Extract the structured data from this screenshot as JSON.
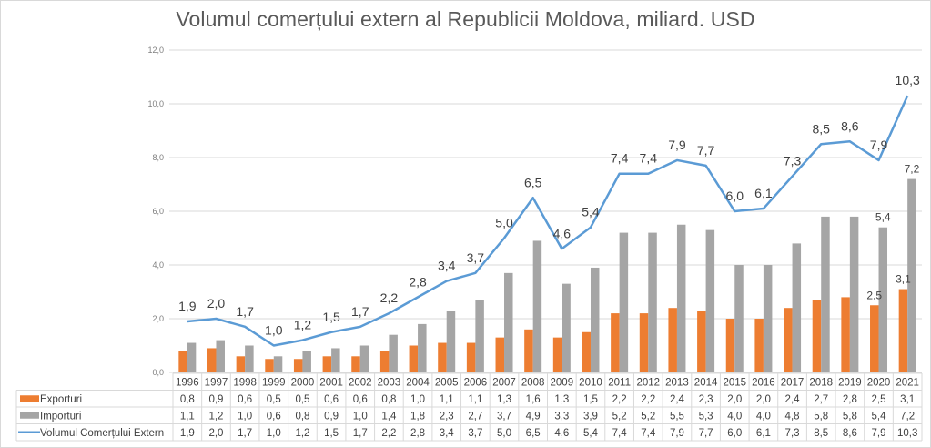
{
  "chart_data": {
    "type": "bar",
    "title": "Volumul comerțului extern al Republicii Moldova, miliard. USD",
    "xlabel": "",
    "ylabel": "",
    "ylim": [
      0,
      12
    ],
    "yticks": [
      "0,0",
      "2,0",
      "4,0",
      "6,0",
      "8,0",
      "10,0",
      "12,0"
    ],
    "ytick_values": [
      0,
      2,
      4,
      6,
      8,
      10,
      12
    ],
    "grid": true,
    "legend_placement": "bottom-left data table",
    "categories": [
      "1996",
      "1997",
      "1998",
      "1999",
      "2000",
      "2001",
      "2002",
      "2003",
      "2004",
      "2005",
      "2006",
      "2007",
      "2008",
      "2009",
      "2010",
      "2011",
      "2012",
      "2013",
      "2014",
      "2015",
      "2016",
      "2017",
      "2018",
      "2019",
      "2020",
      "2021"
    ],
    "series": [
      {
        "name": "Exporturi",
        "kind": "bar",
        "color": "#ed7d31",
        "values": [
          0.8,
          0.9,
          0.6,
          0.5,
          0.5,
          0.6,
          0.6,
          0.8,
          1.0,
          1.1,
          1.1,
          1.3,
          1.6,
          1.3,
          1.5,
          2.2,
          2.2,
          2.4,
          2.3,
          2.0,
          2.0,
          2.4,
          2.7,
          2.8,
          2.5,
          3.1
        ],
        "table_values": [
          "0,8",
          "0,9",
          "0,6",
          "0,5",
          "0,5",
          "0,6",
          "0,6",
          "0,8",
          "1,0",
          "1,1",
          "1,1",
          "1,3",
          "1,6",
          "1,3",
          "1,5",
          "2,2",
          "2,2",
          "2,4",
          "2,3",
          "2,0",
          "2,0",
          "2,4",
          "2,7",
          "2,8",
          "2,5",
          "3,1"
        ],
        "data_labels": {
          "2020": "2,5",
          "2021": "3,1"
        }
      },
      {
        "name": "Importuri",
        "kind": "bar",
        "color": "#a5a5a5",
        "values": [
          1.1,
          1.2,
          1.0,
          0.6,
          0.8,
          0.9,
          1.0,
          1.4,
          1.8,
          2.3,
          2.7,
          3.7,
          4.9,
          3.3,
          3.9,
          5.2,
          5.2,
          5.5,
          5.3,
          4.0,
          4.0,
          4.8,
          5.8,
          5.8,
          5.4,
          7.2
        ],
        "table_values": [
          "1,1",
          "1,2",
          "1,0",
          "0,6",
          "0,8",
          "0,9",
          "1,0",
          "1,4",
          "1,8",
          "2,3",
          "2,7",
          "3,7",
          "4,9",
          "3,3",
          "3,9",
          "5,2",
          "5,2",
          "5,5",
          "5,3",
          "4,0",
          "4,0",
          "4,8",
          "5,8",
          "5,8",
          "5,4",
          "7,2"
        ],
        "data_labels": {
          "2020": "5,4",
          "2021": "7,2"
        }
      },
      {
        "name": "Volumul Comerțului Extern",
        "kind": "line",
        "color": "#5b9bd5",
        "values": [
          1.9,
          2.0,
          1.7,
          1.0,
          1.2,
          1.5,
          1.7,
          2.2,
          2.8,
          3.4,
          3.7,
          5.0,
          6.5,
          4.6,
          5.4,
          7.4,
          7.4,
          7.9,
          7.7,
          6.0,
          6.1,
          7.3,
          8.5,
          8.6,
          7.9,
          10.3
        ],
        "table_values": [
          "1,9",
          "2,0",
          "1,7",
          "1,0",
          "1,2",
          "1,5",
          "1,7",
          "2,2",
          "2,8",
          "3,4",
          "3,7",
          "5,0",
          "6,5",
          "4,6",
          "5,4",
          "7,4",
          "7,4",
          "7,9",
          "7,7",
          "6,0",
          "6,1",
          "7,3",
          "8,5",
          "8,6",
          "7,9",
          "10,3"
        ]
      }
    ]
  }
}
